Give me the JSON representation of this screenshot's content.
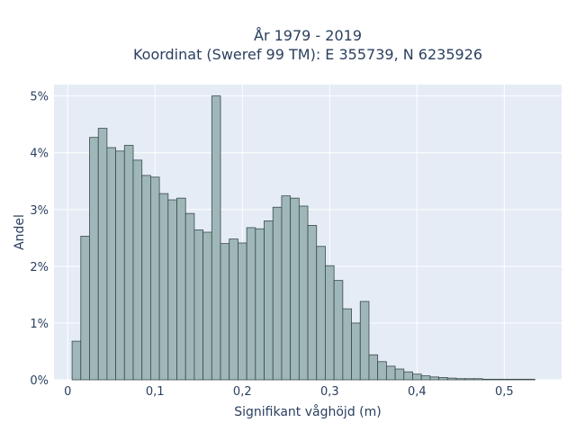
{
  "chart_data": {
    "type": "bar",
    "title": "År 1979 - 2019",
    "subtitle": "Koordinat (Sweref 99 TM): E 355739, N 6235926",
    "xlabel": "Signifikant våghöjd (m)",
    "ylabel": "Andel",
    "bin_width": 0.01,
    "bin_start": 0.005,
    "values": [
      0.68,
      2.53,
      4.27,
      4.43,
      4.09,
      4.03,
      4.13,
      3.87,
      3.6,
      3.57,
      3.28,
      3.17,
      3.2,
      2.93,
      2.64,
      2.6,
      5.0,
      2.4,
      2.48,
      2.41,
      2.68,
      2.66,
      2.8,
      3.04,
      3.24,
      3.2,
      3.06,
      2.72,
      2.35,
      2.01,
      1.75,
      1.25,
      1.0,
      1.38,
      0.44,
      0.32,
      0.24,
      0.19,
      0.14,
      0.1,
      0.07,
      0.05,
      0.04,
      0.03,
      0.02,
      0.02,
      0.02,
      0.01,
      0.01,
      0.01,
      0.01,
      0.01,
      0.01
    ],
    "xlim": [
      -0.0157,
      0.5656
    ],
    "ylim": [
      0,
      5.2
    ],
    "x_ticks": [
      0,
      0.1,
      0.2,
      0.3,
      0.4,
      0.5
    ],
    "x_tick_labels": [
      "0",
      "0,1",
      "0,2",
      "0,3",
      "0,4",
      "0,5"
    ],
    "y_ticks": [
      0,
      1,
      2,
      3,
      4,
      5
    ],
    "y_tick_labels": [
      "0%",
      "1%",
      "2%",
      "3%",
      "4%",
      "5%"
    ],
    "grid": true,
    "colors": {
      "plot_bg": "#e5ecf6",
      "grid": "#ffffff",
      "bar_fill": "#9fb7b8",
      "bar_stroke": "#3a4a48",
      "text": "#2a3f5f"
    }
  }
}
